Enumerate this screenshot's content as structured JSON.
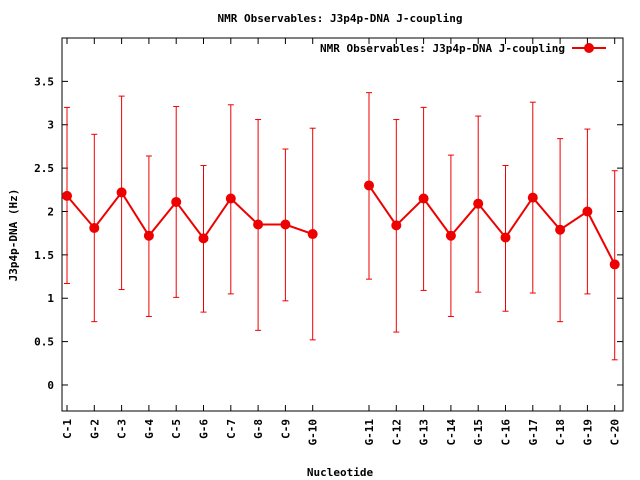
{
  "chart_data": {
    "type": "line",
    "title": "NMR Observables: J3p4p-DNA J-coupling",
    "xlabel": "Nucleotide",
    "ylabel": "J3p4p-DNA (Hz)",
    "ylim": [
      -0.3,
      4.0
    ],
    "yticks": [
      "0",
      "0.5",
      "1",
      "1.5",
      "2",
      "2.5",
      "3",
      "3.5"
    ],
    "grid": false,
    "legend_position": "top-right",
    "color": "#ee0000",
    "categories": [
      "C-1",
      "G-2",
      "C-3",
      "G-4",
      "C-5",
      "G-6",
      "C-7",
      "G-8",
      "C-9",
      "G-10",
      "G-11",
      "C-12",
      "G-13",
      "C-14",
      "G-15",
      "C-16",
      "G-17",
      "C-18",
      "G-19",
      "C-20"
    ],
    "series": [
      {
        "name": "NMR Observables: J3p4p-DNA J-coupling",
        "segments": [
          [
            0,
            9
          ],
          [
            10,
            19
          ]
        ],
        "values": [
          2.18,
          1.81,
          2.22,
          1.72,
          2.11,
          1.69,
          2.15,
          1.85,
          1.85,
          1.74,
          2.3,
          1.84,
          2.15,
          1.72,
          2.09,
          1.7,
          2.16,
          1.79,
          2.0,
          1.39
        ],
        "error_low": [
          1.17,
          0.73,
          1.1,
          0.79,
          1.01,
          0.84,
          1.05,
          0.63,
          0.97,
          0.52,
          1.22,
          0.61,
          1.09,
          0.79,
          1.07,
          0.85,
          1.06,
          0.73,
          1.05,
          0.29
        ],
        "error_high": [
          3.2,
          2.89,
          3.33,
          2.64,
          3.21,
          2.53,
          3.23,
          3.06,
          2.72,
          2.96,
          3.37,
          3.06,
          3.2,
          2.65,
          3.1,
          2.53,
          3.26,
          2.84,
          2.95,
          2.47
        ]
      }
    ]
  }
}
